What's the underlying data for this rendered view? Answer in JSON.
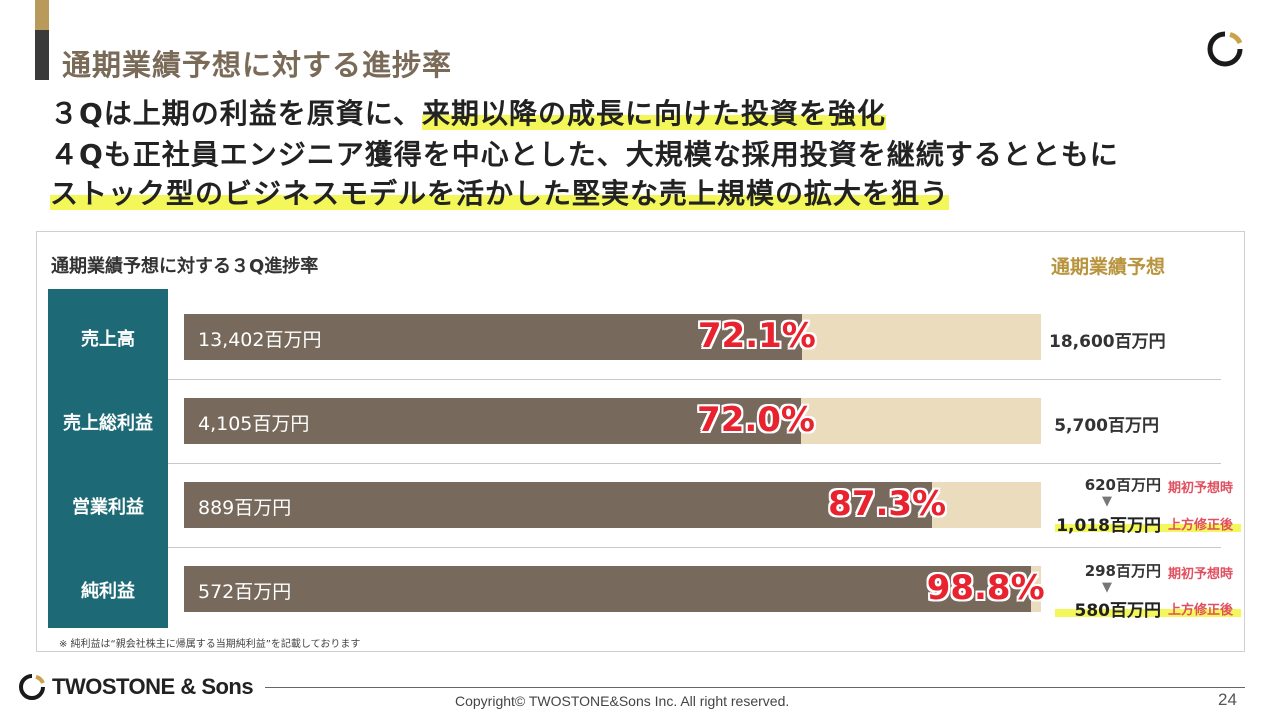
{
  "header": {
    "title": "通期業績予想に対する進捗率"
  },
  "headlines": {
    "line1_plain": "３Qは上期の利益を原資に、",
    "line1_highlight": "来期以降の成長に向けた投資を強化",
    "line2": "４Qも正社員エンジニア獲得を中心とした、大規模な採用投資を継続するとともに",
    "line3_highlight": "ストック型のビジネスモデルを活かした堅実な売上規模の拡大を狙う"
  },
  "chart_data": {
    "type": "bar",
    "orientation": "horizontal",
    "title": "通期業績予想に対する３Q進捗率",
    "forecast_header": "通期業績予想",
    "unit": "百万円",
    "categories": [
      "売上高",
      "売上総利益",
      "営業利益",
      "純利益"
    ],
    "actual_labels": [
      "13,402百万円",
      "4,105百万円",
      "889百万円",
      "572百万円"
    ],
    "actual_values": [
      13402,
      4105,
      889,
      572
    ],
    "progress_labels": [
      "72.1%",
      "72.0%",
      "87.3%",
      "98.8%"
    ],
    "progress_values": [
      72.1,
      72.0,
      87.3,
      98.8
    ],
    "forecast_labels": [
      "18,600百万円",
      "5,700百万円",
      "1,018百万円",
      "580百万円"
    ],
    "forecast_values": [
      18600,
      5700,
      1018,
      580
    ],
    "initial_forecast_labels": [
      "",
      "",
      "620百万円",
      "298百万円"
    ],
    "initial_forecast_values": [
      null,
      null,
      620,
      298
    ],
    "initial_tag": "期初予想時",
    "revised_tag": "上方修正後",
    "xlim": [
      0,
      100
    ],
    "colors": {
      "actual": "#776a5c",
      "remaining": "#eadcbc",
      "label_bg": "#1d6a76",
      "percent": "#e8232f"
    }
  },
  "footnote": "※ 純利益は“親会社株主に帰属する当期純利益”を記載しております",
  "footer": {
    "brand": "TWOSTONE & Sons",
    "copyright": "Copyright© TWOSTONE&Sons Inc. All right reserved.",
    "page_number": "24"
  }
}
